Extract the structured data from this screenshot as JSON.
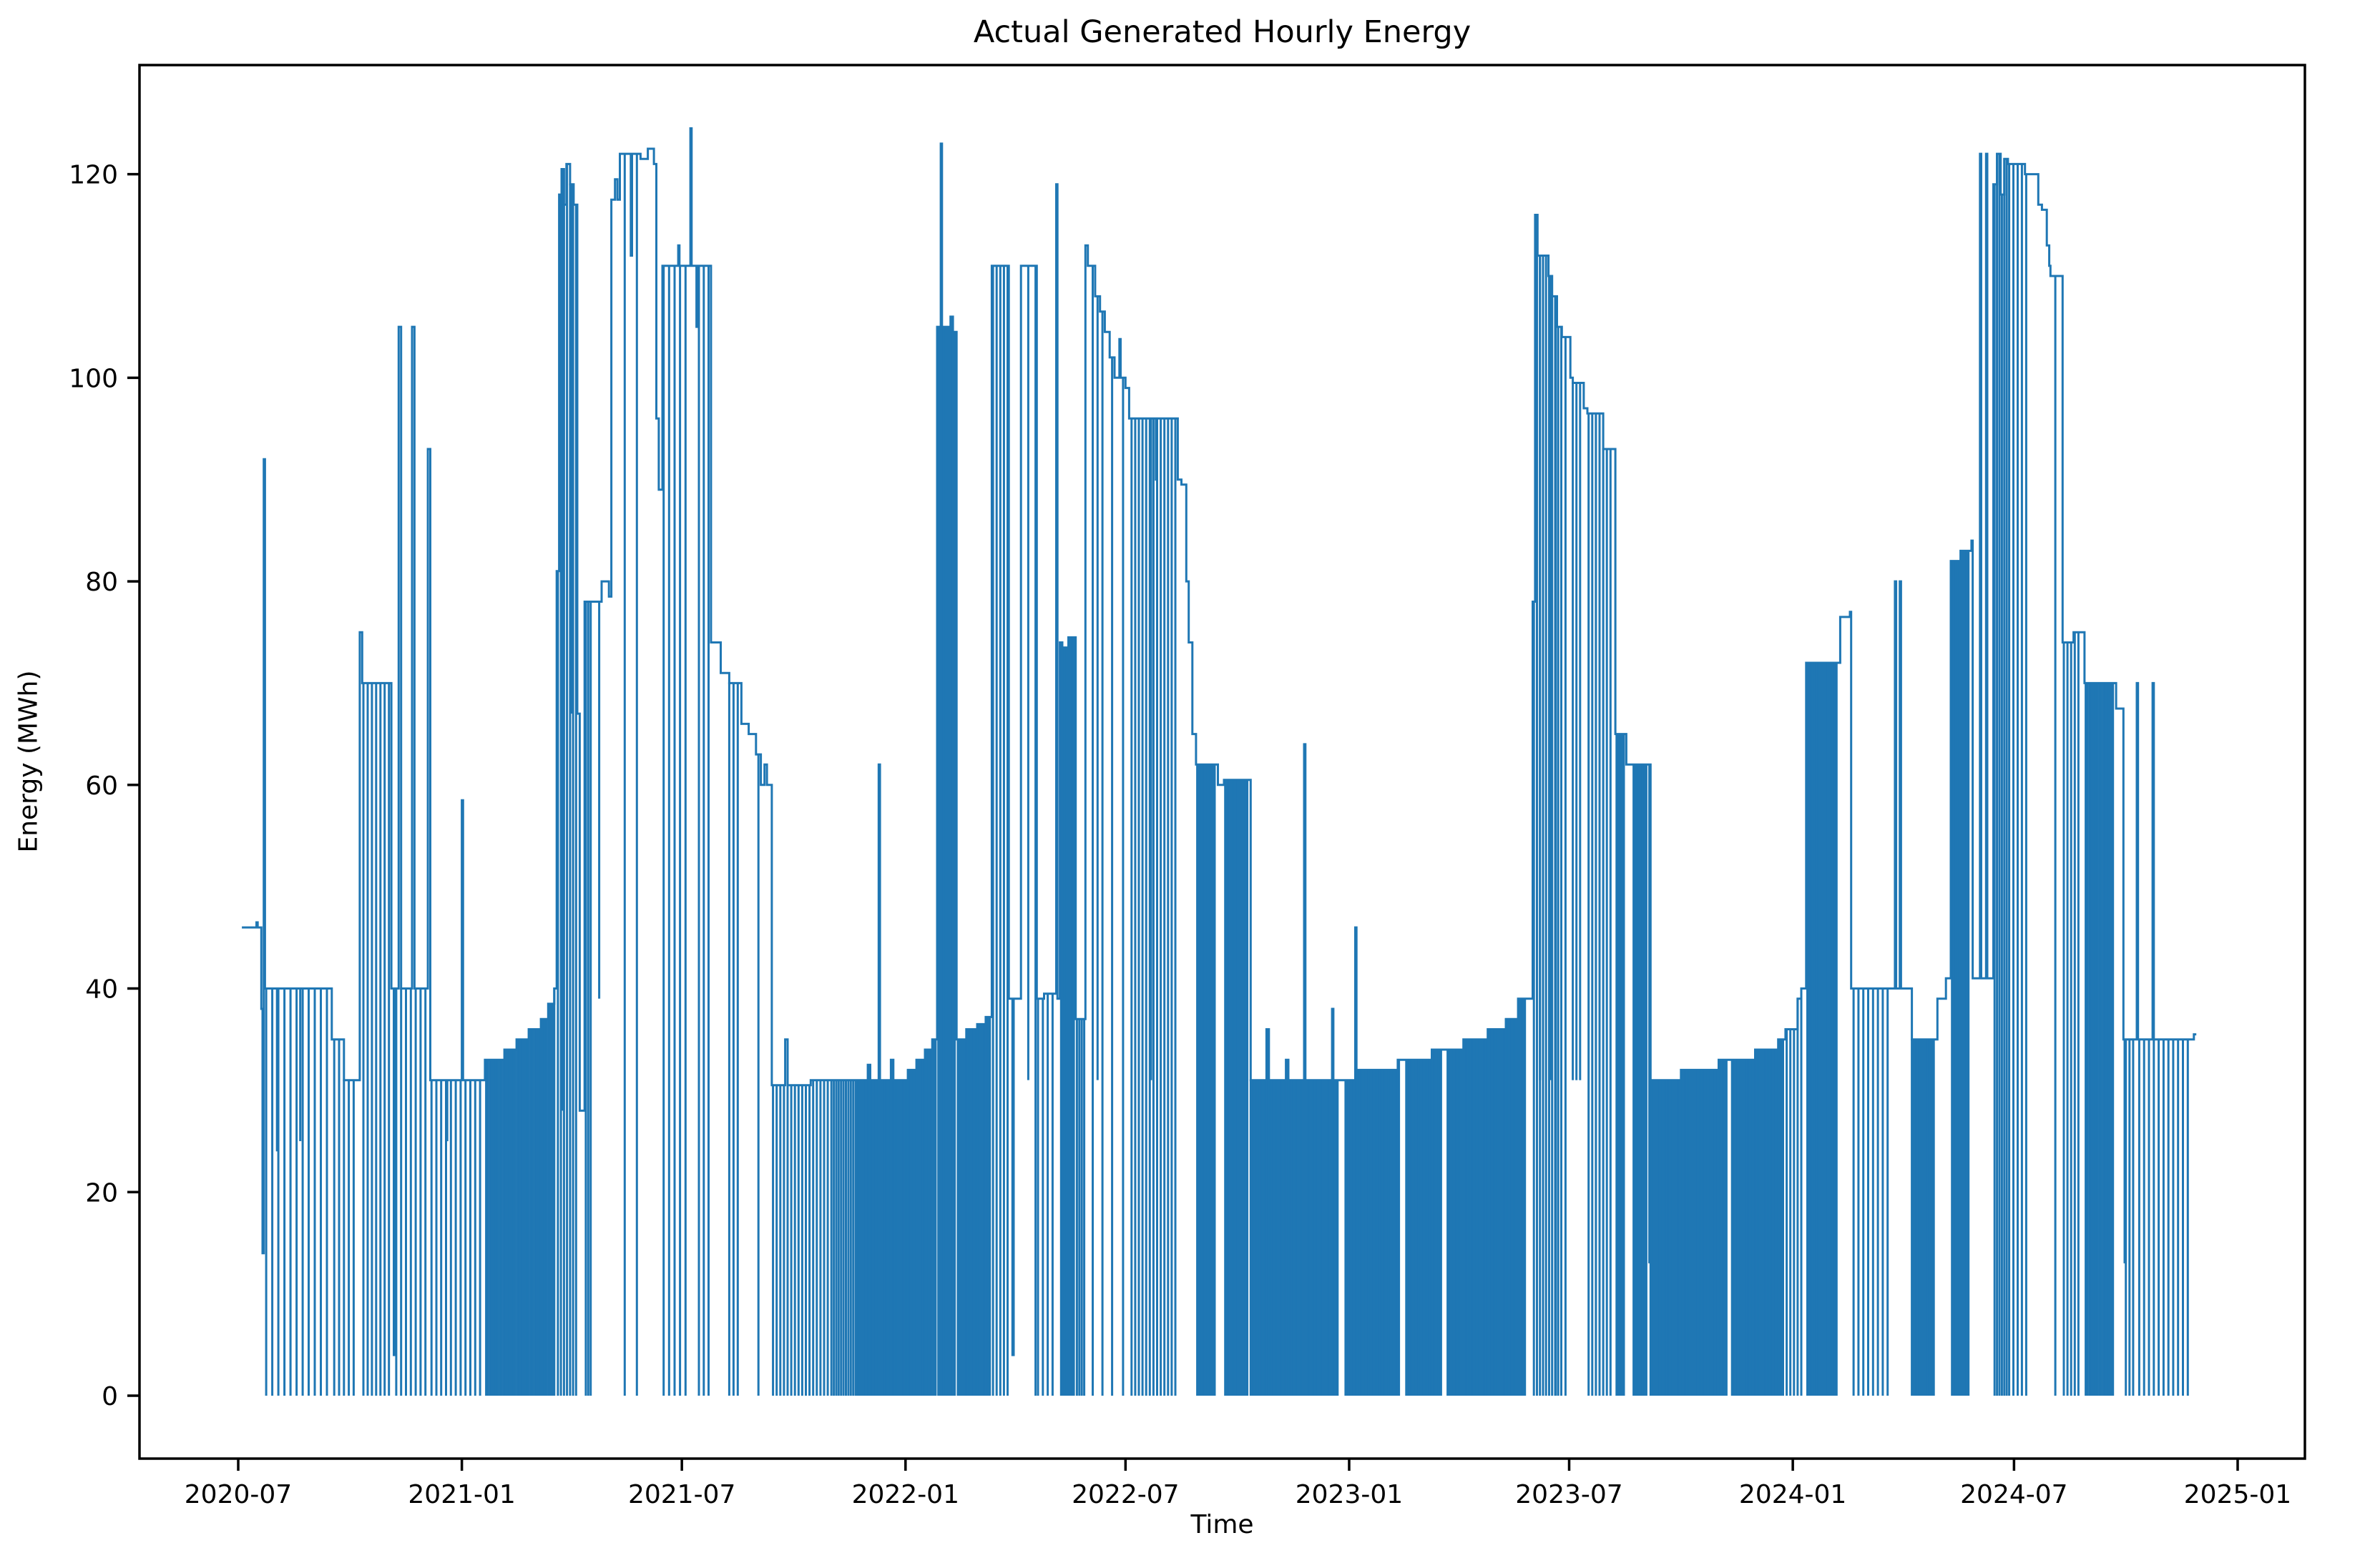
{
  "chart_data": {
    "type": "line",
    "title": "Actual Generated Hourly Energy",
    "xlabel": "Time",
    "ylabel": "Energy (MWh)",
    "line_color": "#1f77b4",
    "axis_color": "#000000",
    "background_color": "#ffffff",
    "grid": false,
    "legend": null,
    "ylim": [
      -6.2,
      130.7
    ],
    "y_ticks": [
      0,
      20,
      40,
      60,
      80,
      100,
      120
    ],
    "x_ticks": [
      {
        "label": "2020-07",
        "date": "2020-07-01"
      },
      {
        "label": "2021-01",
        "date": "2021-01-01"
      },
      {
        "label": "2021-07",
        "date": "2021-07-01"
      },
      {
        "label": "2022-01",
        "date": "2022-01-01"
      },
      {
        "label": "2022-07",
        "date": "2022-07-01"
      },
      {
        "label": "2023-01",
        "date": "2023-01-01"
      },
      {
        "label": "2023-07",
        "date": "2023-07-01"
      },
      {
        "label": "2024-01",
        "date": "2024-01-01"
      },
      {
        "label": "2024-07",
        "date": "2024-07-01"
      },
      {
        "label": "2025-01",
        "date": "2025-01-01"
      }
    ],
    "x_range_dates": [
      "2020-04-10",
      "2025-02-25"
    ],
    "data_start": "2020-07-04",
    "data_end": "2024-11-28",
    "value_unit": "MWh",
    "max_value": 124.5,
    "min_value": 0,
    "encoding_note": "hourly series approximated as step envelope (date,MWh) plus zero/low dip events read from the plot",
    "envelope": [
      [
        "2020-07-04",
        46
      ],
      [
        "2020-07-16",
        46.5
      ],
      [
        "2020-07-17",
        46
      ],
      [
        "2020-07-20",
        38
      ],
      [
        "2020-07-21",
        14
      ],
      [
        "2020-07-22",
        92
      ],
      [
        "2020-07-23",
        40
      ],
      [
        "2020-09-16",
        35
      ],
      [
        "2020-09-26",
        31
      ],
      [
        "2020-10-09",
        75
      ],
      [
        "2020-10-11",
        70
      ],
      [
        "2020-11-04",
        40
      ],
      [
        "2020-11-06",
        4
      ],
      [
        "2020-11-07",
        40
      ],
      [
        "2020-11-10",
        105
      ],
      [
        "2020-11-12",
        40
      ],
      [
        "2020-11-21",
        105
      ],
      [
        "2020-11-23",
        40
      ],
      [
        "2020-12-04",
        93
      ],
      [
        "2020-12-06",
        31
      ],
      [
        "2021-01-01",
        58.5
      ],
      [
        "2021-01-02",
        31
      ],
      [
        "2021-01-20",
        33
      ],
      [
        "2021-02-05",
        34
      ],
      [
        "2021-02-15",
        35
      ],
      [
        "2021-02-25",
        36
      ],
      [
        "2021-03-07",
        37
      ],
      [
        "2021-03-13",
        38.5
      ],
      [
        "2021-03-18",
        40
      ],
      [
        "2021-03-20",
        81
      ],
      [
        "2021-03-22",
        118
      ],
      [
        "2021-03-24",
        120.5
      ],
      [
        "2021-03-26",
        117
      ],
      [
        "2021-03-28",
        121
      ],
      [
        "2021-03-31",
        119
      ],
      [
        "2021-04-03",
        117
      ],
      [
        "2021-04-06",
        67
      ],
      [
        "2021-04-08",
        28
      ],
      [
        "2021-04-12",
        78
      ],
      [
        "2021-04-26",
        80
      ],
      [
        "2021-05-02",
        78.5
      ],
      [
        "2021-05-04",
        117.5
      ],
      [
        "2021-05-07",
        119.5
      ],
      [
        "2021-05-09",
        117.5
      ],
      [
        "2021-05-11",
        122
      ],
      [
        "2021-05-20",
        112
      ],
      [
        "2021-05-21",
        122
      ],
      [
        "2021-05-28",
        121.5
      ],
      [
        "2021-06-03",
        122.5
      ],
      [
        "2021-06-08",
        121
      ],
      [
        "2021-06-10",
        96
      ],
      [
        "2021-06-12",
        89
      ],
      [
        "2021-06-15",
        111
      ],
      [
        "2021-06-28",
        113
      ],
      [
        "2021-06-29",
        111
      ],
      [
        "2021-07-08",
        124.5
      ],
      [
        "2021-07-09",
        111
      ],
      [
        "2021-07-13",
        105
      ],
      [
        "2021-07-14",
        111
      ],
      [
        "2021-07-25",
        74
      ],
      [
        "2021-08-02",
        71
      ],
      [
        "2021-08-09",
        70
      ],
      [
        "2021-08-19",
        66
      ],
      [
        "2021-08-25",
        65
      ],
      [
        "2021-08-31",
        63
      ],
      [
        "2021-09-04",
        60
      ],
      [
        "2021-09-07",
        62
      ],
      [
        "2021-09-09",
        60
      ],
      [
        "2021-09-13",
        30.5
      ],
      [
        "2021-09-24",
        35
      ],
      [
        "2021-09-26",
        30.5
      ],
      [
        "2021-10-15",
        31
      ],
      [
        "2021-12-01",
        32.5
      ],
      [
        "2021-12-03",
        31
      ],
      [
        "2021-12-10",
        62
      ],
      [
        "2021-12-11",
        31
      ],
      [
        "2021-12-20",
        33
      ],
      [
        "2021-12-22",
        31
      ],
      [
        "2022-01-03",
        32
      ],
      [
        "2022-01-10",
        33
      ],
      [
        "2022-01-17",
        34
      ],
      [
        "2022-01-23",
        35
      ],
      [
        "2022-01-27",
        105
      ],
      [
        "2022-01-30",
        123
      ],
      [
        "2022-01-31",
        105
      ],
      [
        "2022-02-07",
        106
      ],
      [
        "2022-02-09",
        104.5
      ],
      [
        "2022-02-12",
        35
      ],
      [
        "2022-02-20",
        36
      ],
      [
        "2022-03-01",
        36.5
      ],
      [
        "2022-03-08",
        37.2
      ],
      [
        "2022-03-13",
        111
      ],
      [
        "2022-03-27",
        39
      ],
      [
        "2022-03-30",
        4
      ],
      [
        "2022-03-31",
        39
      ],
      [
        "2022-04-06",
        111
      ],
      [
        "2022-04-19",
        39
      ],
      [
        "2022-04-25",
        39.5
      ],
      [
        "2022-05-05",
        119
      ],
      [
        "2022-05-06",
        39
      ],
      [
        "2022-05-08",
        74
      ],
      [
        "2022-05-10",
        73.5
      ],
      [
        "2022-05-15",
        74.5
      ],
      [
        "2022-05-21",
        37
      ],
      [
        "2022-05-29",
        113
      ],
      [
        "2022-05-31",
        111
      ],
      [
        "2022-06-06",
        108
      ],
      [
        "2022-06-10",
        106.5
      ],
      [
        "2022-06-14",
        104.5
      ],
      [
        "2022-06-18",
        102
      ],
      [
        "2022-06-22",
        100
      ],
      [
        "2022-06-26",
        103.8
      ],
      [
        "2022-06-27",
        100
      ],
      [
        "2022-07-01",
        99
      ],
      [
        "2022-07-04",
        96
      ],
      [
        "2022-07-26",
        90
      ],
      [
        "2022-07-27",
        96
      ],
      [
        "2022-08-13",
        90
      ],
      [
        "2022-08-16",
        89.5
      ],
      [
        "2022-08-20",
        80
      ],
      [
        "2022-08-22",
        74
      ],
      [
        "2022-08-25",
        65
      ],
      [
        "2022-08-28",
        62
      ],
      [
        "2022-09-15",
        60
      ],
      [
        "2022-09-20",
        60.5
      ],
      [
        "2022-10-12",
        31
      ],
      [
        "2022-10-25",
        36
      ],
      [
        "2022-10-27",
        31
      ],
      [
        "2022-11-10",
        33
      ],
      [
        "2022-11-12",
        31
      ],
      [
        "2022-11-25",
        64
      ],
      [
        "2022-11-26",
        31
      ],
      [
        "2022-12-18",
        38
      ],
      [
        "2022-12-19",
        31
      ],
      [
        "2023-01-06",
        46
      ],
      [
        "2023-01-07",
        32
      ],
      [
        "2023-02-10",
        33
      ],
      [
        "2023-03-10",
        34
      ],
      [
        "2023-04-05",
        35
      ],
      [
        "2023-04-25",
        36
      ],
      [
        "2023-05-10",
        37
      ],
      [
        "2023-05-20",
        39
      ],
      [
        "2023-06-01",
        78
      ],
      [
        "2023-06-03",
        116
      ],
      [
        "2023-06-05",
        112
      ],
      [
        "2023-06-14",
        110
      ],
      [
        "2023-06-17",
        108
      ],
      [
        "2023-06-21",
        105
      ],
      [
        "2023-06-25",
        104
      ],
      [
        "2023-07-02",
        100
      ],
      [
        "2023-07-04",
        99.5
      ],
      [
        "2023-07-13",
        97
      ],
      [
        "2023-07-16",
        96.5
      ],
      [
        "2023-07-29",
        93
      ],
      [
        "2023-08-08",
        65
      ],
      [
        "2023-08-17",
        62
      ],
      [
        "2023-09-06",
        31
      ],
      [
        "2023-10-01",
        32
      ],
      [
        "2023-11-01",
        33
      ],
      [
        "2023-12-01",
        34
      ],
      [
        "2023-12-20",
        35
      ],
      [
        "2023-12-26",
        36
      ],
      [
        "2024-01-05",
        39
      ],
      [
        "2024-01-08",
        40
      ],
      [
        "2024-01-12",
        72
      ],
      [
        "2024-02-09",
        76.5
      ],
      [
        "2024-02-17",
        77
      ],
      [
        "2024-02-18",
        40
      ],
      [
        "2024-03-25",
        80
      ],
      [
        "2024-03-26",
        40
      ],
      [
        "2024-03-29",
        80
      ],
      [
        "2024-03-30",
        40
      ],
      [
        "2024-04-08",
        35
      ],
      [
        "2024-04-29",
        39
      ],
      [
        "2024-05-06",
        41
      ],
      [
        "2024-05-10",
        82
      ],
      [
        "2024-05-18",
        83
      ],
      [
        "2024-05-27",
        84
      ],
      [
        "2024-05-28",
        41
      ],
      [
        "2024-06-03",
        122
      ],
      [
        "2024-06-04",
        41
      ],
      [
        "2024-06-08",
        122
      ],
      [
        "2024-06-09",
        41
      ],
      [
        "2024-06-14",
        119
      ],
      [
        "2024-06-17",
        122
      ],
      [
        "2024-06-20",
        118
      ],
      [
        "2024-06-23",
        121.5
      ],
      [
        "2024-06-26",
        121
      ],
      [
        "2024-07-10",
        120
      ],
      [
        "2024-07-21",
        117
      ],
      [
        "2024-07-24",
        116.5
      ],
      [
        "2024-07-28",
        113
      ],
      [
        "2024-07-30",
        111
      ],
      [
        "2024-07-31",
        110
      ],
      [
        "2024-08-10",
        74
      ],
      [
        "2024-08-19",
        75
      ],
      [
        "2024-08-28",
        70
      ],
      [
        "2024-09-23",
        67.5
      ],
      [
        "2024-09-29",
        35
      ],
      [
        "2024-10-10",
        70
      ],
      [
        "2024-10-11",
        35
      ],
      [
        "2024-10-23",
        70
      ],
      [
        "2024-10-24",
        35
      ],
      [
        "2024-11-26",
        35.5
      ]
    ],
    "dip_trains": [
      [
        "2020-07-24",
        "2020-09-14",
        5,
        0,
        1.2
      ],
      [
        "2020-09-18",
        "2020-10-07",
        4,
        0,
        1.2
      ],
      [
        "2020-10-12",
        "2020-11-03",
        3.5,
        0,
        1.5
      ],
      [
        "2020-11-08",
        "2020-12-03",
        4,
        0,
        1.5
      ],
      [
        "2020-12-07",
        "2021-01-18",
        4,
        0,
        1.5
      ],
      [
        "2021-01-21",
        "2021-03-19",
        1.6,
        0,
        1.1
      ],
      [
        "2021-03-21",
        "2021-04-05",
        2.5,
        0,
        1.0
      ],
      [
        "2021-04-13",
        "2021-04-18",
        2,
        0,
        1.0
      ],
      [
        "2021-06-16",
        "2021-07-06",
        4.5,
        0,
        1.3
      ],
      [
        "2021-07-15",
        "2021-07-24",
        4,
        0,
        1.2
      ],
      [
        "2021-08-09",
        "2021-08-18",
        3.5,
        0,
        1.2
      ],
      [
        "2021-09-14",
        "2021-10-31",
        3,
        0,
        1.3
      ],
      [
        "2021-11-01",
        "2021-11-21",
        2,
        0,
        1.1
      ],
      [
        "2021-11-22",
        "2022-01-26",
        1.2,
        0,
        1.0
      ],
      [
        "2022-01-28",
        "2022-02-11",
        1.5,
        0,
        0.9
      ],
      [
        "2022-02-13",
        "2022-03-12",
        1.2,
        0,
        1.0
      ],
      [
        "2022-03-14",
        "2022-03-26",
        3,
        0,
        1.2
      ],
      [
        "2022-04-20",
        "2022-05-04",
        4,
        0,
        1.2
      ],
      [
        "2022-05-09",
        "2022-05-20",
        1.5,
        0,
        1.0
      ],
      [
        "2022-05-22",
        "2022-05-28",
        2,
        0,
        1.0
      ],
      [
        "2022-07-06",
        "2022-08-11",
        3,
        0,
        1.3
      ],
      [
        "2022-08-29",
        "2022-09-13",
        1.2,
        0,
        1.0
      ],
      [
        "2022-09-21",
        "2022-10-10",
        1.3,
        0,
        1.0
      ],
      [
        "2022-10-12",
        "2022-12-23",
        1.1,
        0,
        1.0
      ],
      [
        "2022-12-29",
        "2023-02-12",
        1.1,
        0,
        1.0
      ],
      [
        "2023-02-17",
        "2023-03-18",
        1.1,
        0,
        1.0
      ],
      [
        "2023-03-23",
        "2023-05-26",
        1.2,
        0,
        1.0
      ],
      [
        "2023-06-02",
        "2023-06-26",
        2.5,
        0,
        1.5
      ],
      [
        "2023-07-04",
        "2023-07-12",
        3,
        31,
        1.2
      ],
      [
        "2023-07-17",
        "2023-08-06",
        3,
        0,
        1.4
      ],
      [
        "2023-08-09",
        "2023-08-15",
        1.5,
        0,
        1.0
      ],
      [
        "2023-08-23",
        "2023-09-03",
        1.5,
        0,
        1.0
      ],
      [
        "2023-09-06",
        "2023-11-08",
        1.2,
        0,
        1.0
      ],
      [
        "2023-11-12",
        "2023-12-24",
        1.2,
        0,
        1.0
      ],
      [
        "2023-12-27",
        "2024-01-10",
        3,
        0,
        1.2
      ],
      [
        "2024-01-13",
        "2024-02-07",
        1.5,
        0,
        1.0
      ],
      [
        "2024-02-20",
        "2024-03-22",
        4,
        0,
        1.3
      ],
      [
        "2024-04-08",
        "2024-04-27",
        1.2,
        0,
        1.0
      ],
      [
        "2024-05-11",
        "2024-05-25",
        1.5,
        0,
        1.0
      ],
      [
        "2024-06-15",
        "2024-06-25",
        2,
        0,
        1.2
      ],
      [
        "2024-06-27",
        "2024-07-11",
        3.5,
        0,
        1.3
      ],
      [
        "2024-08-11",
        "2024-08-23",
        3,
        0,
        1.2
      ],
      [
        "2024-08-29",
        "2024-09-21",
        1.6,
        0,
        1.0
      ],
      [
        "2024-10-01",
        "2024-10-08",
        3,
        0,
        1.2
      ],
      [
        "2024-10-12",
        "2024-11-24",
        4,
        0,
        1.3
      ]
    ],
    "dips": [
      [
        "2020-08-02",
        24,
        2
      ],
      [
        "2020-08-21",
        25,
        1.5
      ],
      [
        "2020-12-20",
        25,
        1.5
      ],
      [
        "2021-03-25",
        28,
        1
      ],
      [
        "2021-04-01",
        67,
        1
      ],
      [
        "2021-04-24",
        39,
        1
      ],
      [
        "2021-05-15",
        0,
        1
      ],
      [
        "2021-05-25",
        0,
        1
      ],
      [
        "2021-09-02",
        0,
        1.5
      ],
      [
        "2022-04-12",
        31,
        1.5
      ],
      [
        "2022-04-18",
        0,
        1
      ],
      [
        "2022-06-04",
        0,
        1.5
      ],
      [
        "2022-06-08",
        31,
        1
      ],
      [
        "2022-06-12",
        0,
        1.5
      ],
      [
        "2022-06-20",
        0,
        1.5
      ],
      [
        "2022-06-29",
        0,
        1.5
      ],
      [
        "2022-07-22",
        31,
        1
      ],
      [
        "2023-06-07",
        31,
        1.5
      ],
      [
        "2023-06-16",
        31,
        1
      ],
      [
        "2023-06-20",
        0,
        1.5
      ],
      [
        "2023-06-28",
        0,
        1.5
      ],
      [
        "2023-09-05",
        13,
        1.5
      ],
      [
        "2024-08-04",
        0,
        1.5
      ],
      [
        "2024-09-30",
        13,
        1.5
      ]
    ]
  }
}
